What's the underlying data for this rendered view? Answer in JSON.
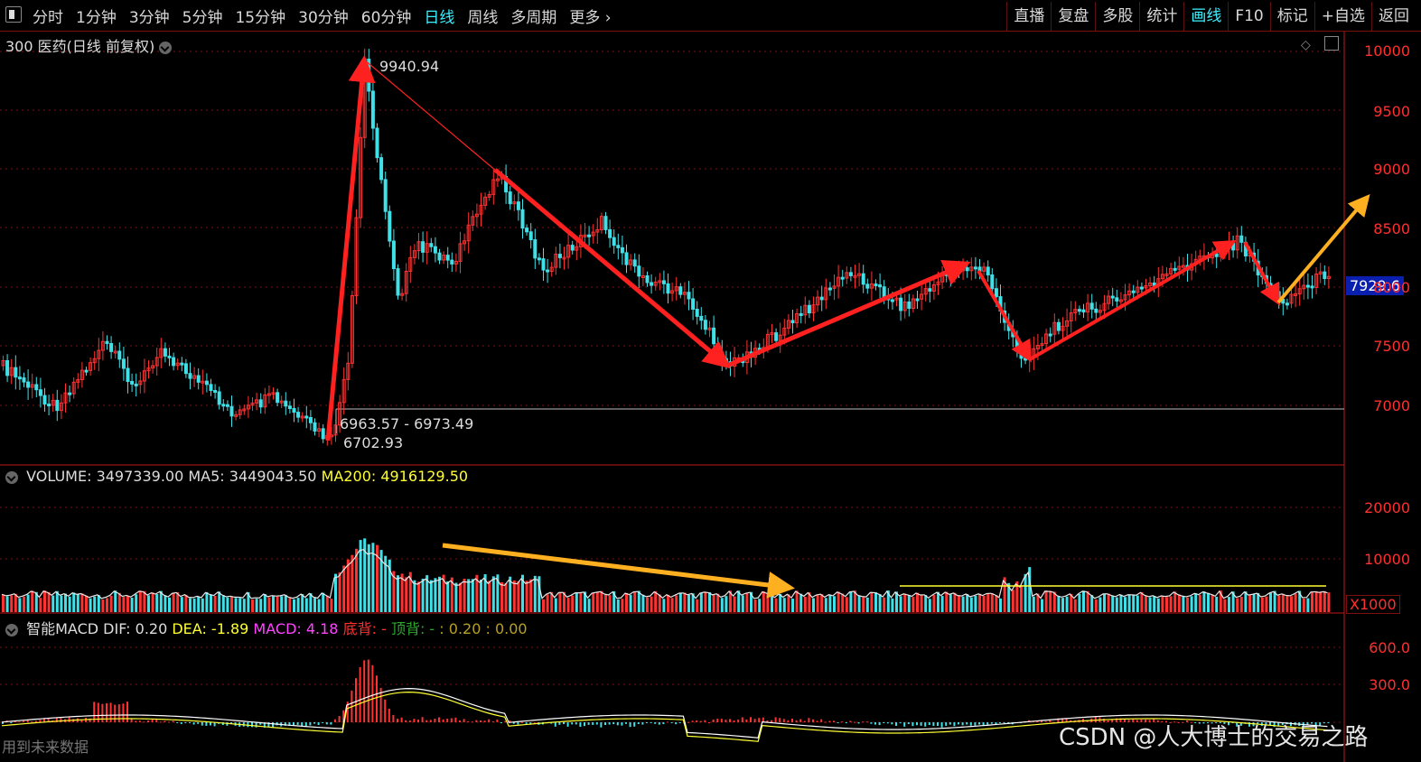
{
  "toolbar": {
    "tabs": [
      "分时",
      "1分钟",
      "3分钟",
      "5分钟",
      "15分钟",
      "30分钟",
      "60分钟",
      "日线",
      "周线",
      "多周期",
      "更多"
    ],
    "active_tab": "日线",
    "right_buttons": [
      "直播",
      "复盘",
      "多股",
      "统计",
      "画线",
      "F10",
      "标记",
      "+自选",
      "返回"
    ],
    "active_right": "画线"
  },
  "main_panel": {
    "title": "300 医药(日线 前复权)",
    "high_annotation": "9940.94",
    "range_annotation": "6963.57 - 6973.49",
    "low_annotation": "6702.93",
    "price_tag": "7929.6",
    "y_ticks": [
      "10000",
      "9500",
      "9000",
      "8500",
      "8000",
      "7500",
      "7000"
    ]
  },
  "volume_panel": {
    "label": "VOLUME: 3497339.00",
    "ma5": "MA5: 3449043.50",
    "ma200": "MA200: 4916129.50",
    "y_ticks": [
      "20000",
      "10000"
    ],
    "unit": "X1000"
  },
  "macd_panel": {
    "label": "智能MACD",
    "dif": "DIF: 0.20",
    "dea": "DEA: -1.89",
    "macd": "MACD: 4.18",
    "bottom_div": "底背: -",
    "top_div": "顶背: -",
    "extra": ": 0.20 : 0.00",
    "no_data": "用到未来数据",
    "y_ticks": [
      "600.0",
      "300.0"
    ]
  },
  "watermark": "CSDN @人大博士的交易之路",
  "colors": {
    "up": "#ff3232",
    "down": "#40e0e8",
    "arrow_red": "#ff2020",
    "arrow_orange": "#ffb020",
    "grid": "#7a1010",
    "yellow": "#ffff33",
    "magenta": "#ff44ff"
  }
}
